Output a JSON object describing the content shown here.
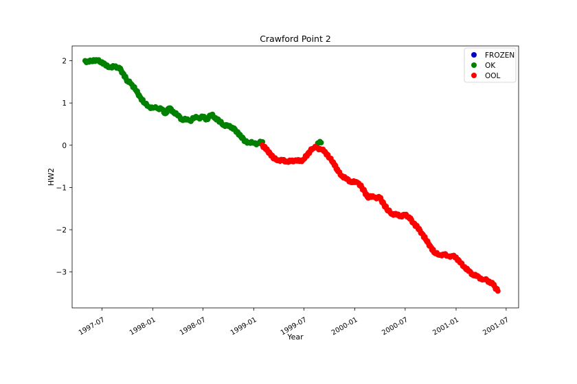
{
  "chart_data": {
    "type": "scatter",
    "title": "Crawford Point 2",
    "xlabel": "Year",
    "ylabel": "HW2",
    "xlim": [
      "1997-03-15",
      "2001-08-15"
    ],
    "ylim": [
      -3.85,
      2.35
    ],
    "x_ticks": [
      "1997-07-01",
      "1998-01-01",
      "1998-07-01",
      "1999-01-01",
      "1999-07-01",
      "2000-01-01",
      "2000-07-01",
      "2001-01-01",
      "2001-07-01"
    ],
    "x_tick_labels": [
      "1997-07",
      "1998-01",
      "1998-07",
      "1999-01",
      "1999-07",
      "2000-01",
      "2000-07",
      "2001-01",
      "2001-07"
    ],
    "y_ticks": [
      2,
      1,
      0,
      -1,
      -2,
      -3
    ],
    "y_tick_labels": [
      "2",
      "1",
      "0",
      "−1",
      "−2",
      "−3"
    ],
    "grid": false,
    "legend_position": "top-right",
    "series": [
      {
        "name": "FROZEN",
        "color": "#0000cd",
        "points": []
      },
      {
        "name": "OK",
        "color": "#008000",
        "points": [
          [
            "1997-05-01",
            2.0
          ],
          [
            "1997-05-15",
            1.97
          ],
          [
            "1997-06-01",
            2.02
          ],
          [
            "1997-06-15",
            2.0
          ],
          [
            "1997-07-01",
            1.97
          ],
          [
            "1997-07-15",
            1.88
          ],
          [
            "1997-08-01",
            1.85
          ],
          [
            "1997-08-15",
            1.86
          ],
          [
            "1997-09-01",
            1.84
          ],
          [
            "1997-09-15",
            1.7
          ],
          [
            "1997-10-01",
            1.52
          ],
          [
            "1997-10-15",
            1.45
          ],
          [
            "1997-11-01",
            1.3
          ],
          [
            "1997-11-15",
            1.15
          ],
          [
            "1997-12-01",
            1.0
          ],
          [
            "1997-12-15",
            0.92
          ],
          [
            "1998-01-01",
            0.88
          ],
          [
            "1998-01-15",
            0.88
          ],
          [
            "1998-02-01",
            0.86
          ],
          [
            "1998-02-15",
            0.75
          ],
          [
            "1998-03-01",
            0.88
          ],
          [
            "1998-03-15",
            0.8
          ],
          [
            "1998-04-01",
            0.7
          ],
          [
            "1998-04-15",
            0.62
          ],
          [
            "1998-05-01",
            0.6
          ],
          [
            "1998-05-15",
            0.58
          ],
          [
            "1998-06-01",
            0.65
          ],
          [
            "1998-06-15",
            0.65
          ],
          [
            "1998-07-01",
            0.66
          ],
          [
            "1998-07-15",
            0.62
          ],
          [
            "1998-08-01",
            0.72
          ],
          [
            "1998-08-15",
            0.65
          ],
          [
            "1998-09-01",
            0.55
          ],
          [
            "1998-09-15",
            0.48
          ],
          [
            "1998-10-01",
            0.45
          ],
          [
            "1998-10-15",
            0.42
          ],
          [
            "1998-11-01",
            0.32
          ],
          [
            "1998-11-15",
            0.2
          ],
          [
            "1998-12-01",
            0.1
          ],
          [
            "1998-12-15",
            0.06
          ],
          [
            "1999-01-01",
            0.05
          ],
          [
            "1999-01-15",
            0.04
          ],
          [
            "1999-02-01",
            0.08
          ],
          [
            "1999-08-20",
            0.05
          ],
          [
            "1999-09-01",
            0.06
          ]
        ]
      },
      {
        "name": "OOL",
        "color": "#ff0000",
        "points": [
          [
            "1999-02-01",
            0.0
          ],
          [
            "1999-02-15",
            -0.1
          ],
          [
            "1999-03-01",
            -0.2
          ],
          [
            "1999-03-15",
            -0.32
          ],
          [
            "1999-04-01",
            -0.35
          ],
          [
            "1999-04-15",
            -0.36
          ],
          [
            "1999-05-01",
            -0.38
          ],
          [
            "1999-05-15",
            -0.38
          ],
          [
            "1999-06-01",
            -0.35
          ],
          [
            "1999-06-15",
            -0.38
          ],
          [
            "1999-07-01",
            -0.33
          ],
          [
            "1999-07-15",
            -0.2
          ],
          [
            "1999-08-01",
            -0.08
          ],
          [
            "1999-08-15",
            -0.05
          ],
          [
            "1999-09-01",
            -0.1
          ],
          [
            "1999-09-15",
            -0.15
          ],
          [
            "1999-10-01",
            -0.3
          ],
          [
            "1999-10-15",
            -0.4
          ],
          [
            "1999-11-01",
            -0.62
          ],
          [
            "1999-11-15",
            -0.72
          ],
          [
            "1999-12-01",
            -0.8
          ],
          [
            "1999-12-15",
            -0.85
          ],
          [
            "2000-01-01",
            -0.88
          ],
          [
            "2000-01-15",
            -0.9
          ],
          [
            "2000-02-01",
            -1.05
          ],
          [
            "2000-02-15",
            -1.22
          ],
          [
            "2000-03-01",
            -1.23
          ],
          [
            "2000-03-15",
            -1.23
          ],
          [
            "2000-04-01",
            -1.25
          ],
          [
            "2000-04-15",
            -1.4
          ],
          [
            "2000-05-01",
            -1.55
          ],
          [
            "2000-05-15",
            -1.62
          ],
          [
            "2000-06-01",
            -1.65
          ],
          [
            "2000-06-15",
            -1.68
          ],
          [
            "2000-07-01",
            -1.65
          ],
          [
            "2000-07-15",
            -1.7
          ],
          [
            "2000-08-01",
            -1.85
          ],
          [
            "2000-08-15",
            -1.95
          ],
          [
            "2000-09-01",
            -2.1
          ],
          [
            "2000-09-15",
            -2.25
          ],
          [
            "2000-10-01",
            -2.4
          ],
          [
            "2000-10-15",
            -2.55
          ],
          [
            "2000-11-01",
            -2.6
          ],
          [
            "2000-11-15",
            -2.58
          ],
          [
            "2000-12-01",
            -2.62
          ],
          [
            "2000-12-15",
            -2.62
          ],
          [
            "2001-01-01",
            -2.65
          ],
          [
            "2001-01-15",
            -2.78
          ],
          [
            "2001-02-01",
            -2.88
          ],
          [
            "2001-02-15",
            -2.98
          ],
          [
            "2001-03-01",
            -3.05
          ],
          [
            "2001-03-15",
            -3.1
          ],
          [
            "2001-04-01",
            -3.15
          ],
          [
            "2001-04-15",
            -3.18
          ],
          [
            "2001-05-01",
            -3.22
          ],
          [
            "2001-05-15",
            -3.3
          ],
          [
            "2001-06-01",
            -3.45
          ]
        ]
      }
    ]
  }
}
